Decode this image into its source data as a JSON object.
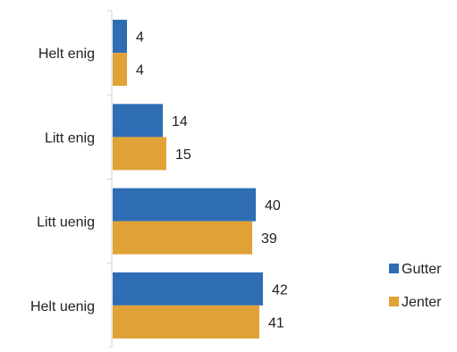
{
  "chart_data": {
    "type": "bar",
    "orientation": "horizontal",
    "categories": [
      "Helt enig",
      "Litt enig",
      "Litt uenig",
      "Helt uenig"
    ],
    "series": [
      {
        "name": "Gutter",
        "values": [
          4,
          14,
          40,
          42
        ],
        "color": "#2E6DB4"
      },
      {
        "name": "Jenter",
        "values": [
          4,
          15,
          39,
          41
        ],
        "color": "#E0A236"
      }
    ],
    "xlim": [
      0,
      50
    ],
    "grid": false,
    "legend": "bottom-right",
    "data_labels": true
  }
}
